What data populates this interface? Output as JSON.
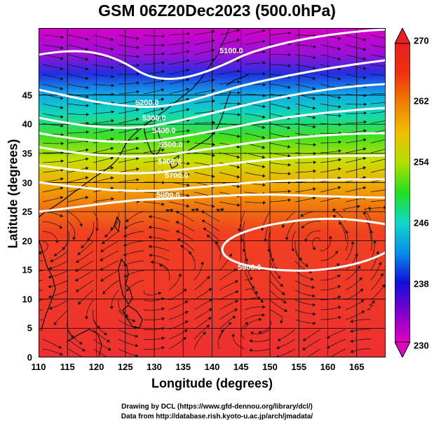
{
  "title": "GSM 06Z20Dec2023 (500.0hPa)",
  "xlabel": "Longitude (degrees)",
  "ylabel": "Latitude  (degrees)",
  "x_ticks": [
    "110",
    "115",
    "120",
    "125",
    "130",
    "135",
    "140",
    "145",
    "150",
    "155",
    "160",
    "165"
  ],
  "y_ticks": [
    "0",
    "5",
    "10",
    "15",
    "20",
    "25",
    "30",
    "35",
    "40",
    "45"
  ],
  "colorbar": {
    "min": 230,
    "max": 270,
    "ticks": [
      "230",
      "238",
      "246",
      "254",
      "262",
      "270"
    ],
    "colors": [
      "#e000c0",
      "#7000d0",
      "#1010d8",
      "#0890e8",
      "#10d8c8",
      "#20e020",
      "#b0e000",
      "#f0c000",
      "#f08000",
      "#f03010",
      "#e82020"
    ]
  },
  "contours": [
    {
      "label": "5100.0"
    },
    {
      "label": "5200.0"
    },
    {
      "label": "5300.0"
    },
    {
      "label": "5400.0"
    },
    {
      "label": "5500.0"
    },
    {
      "label": "5600.0"
    },
    {
      "label": "5700.0"
    },
    {
      "label": "5800.0"
    },
    {
      "label": "5900.0"
    }
  ],
  "credits": [
    "Drawing by DCL (https://www.gfd-dennou.org/library/dcl/)",
    "Data from http://database.rish.kyoto-u.ac.jp/arch/jmadata/"
  ],
  "colors": {
    "contour": "#ffffff",
    "streamline": "#000000",
    "coast": "#000000"
  }
}
